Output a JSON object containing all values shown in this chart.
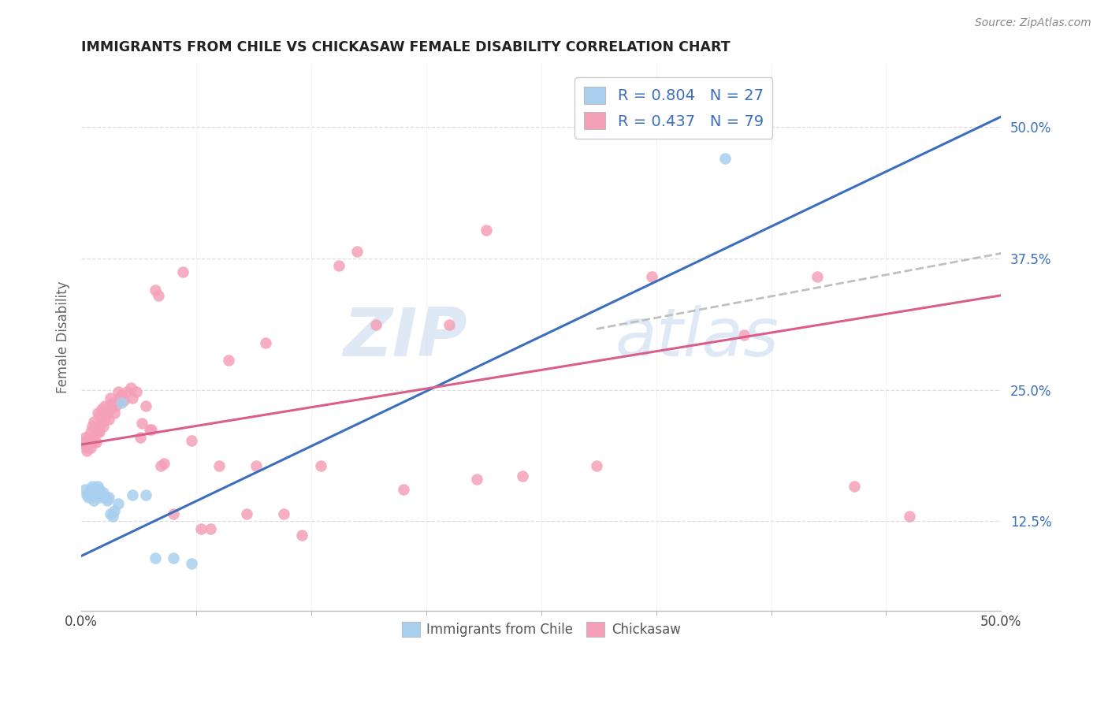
{
  "title": "IMMIGRANTS FROM CHILE VS CHICKASAW FEMALE DISABILITY CORRELATION CHART",
  "source": "Source: ZipAtlas.com",
  "ylabel": "Female Disability",
  "xlim": [
    0.0,
    0.5
  ],
  "ylim": [
    0.04,
    0.56
  ],
  "ytick_right_labels": [
    "50.0%",
    "37.5%",
    "25.0%",
    "12.5%"
  ],
  "ytick_right_values": [
    0.5,
    0.375,
    0.25,
    0.125
  ],
  "blue_R": 0.804,
  "blue_N": 27,
  "pink_R": 0.437,
  "pink_N": 79,
  "blue_color": "#A8CFEE",
  "pink_color": "#F4A0B8",
  "blue_line_color": "#3B6FBE",
  "pink_line_color": "#D95F8A",
  "dashed_line_color": "#C0C0C0",
  "watermark_zip": "ZIP",
  "watermark_atlas": "atlas",
  "legend_color": "#3B6FBE",
  "blue_scatter": [
    [
      0.002,
      0.155
    ],
    [
      0.003,
      0.15
    ],
    [
      0.004,
      0.148
    ],
    [
      0.005,
      0.155
    ],
    [
      0.006,
      0.158
    ],
    [
      0.006,
      0.148
    ],
    [
      0.007,
      0.145
    ],
    [
      0.008,
      0.152
    ],
    [
      0.009,
      0.158
    ],
    [
      0.01,
      0.155
    ],
    [
      0.01,
      0.148
    ],
    [
      0.011,
      0.15
    ],
    [
      0.012,
      0.152
    ],
    [
      0.013,
      0.148
    ],
    [
      0.014,
      0.145
    ],
    [
      0.015,
      0.148
    ],
    [
      0.016,
      0.132
    ],
    [
      0.017,
      0.13
    ],
    [
      0.018,
      0.135
    ],
    [
      0.02,
      0.142
    ],
    [
      0.022,
      0.238
    ],
    [
      0.028,
      0.15
    ],
    [
      0.035,
      0.15
    ],
    [
      0.04,
      0.09
    ],
    [
      0.05,
      0.09
    ],
    [
      0.06,
      0.085
    ],
    [
      0.35,
      0.47
    ]
  ],
  "pink_scatter": [
    [
      0.001,
      0.2
    ],
    [
      0.002,
      0.205
    ],
    [
      0.002,
      0.198
    ],
    [
      0.003,
      0.202
    ],
    [
      0.003,
      0.195
    ],
    [
      0.003,
      0.192
    ],
    [
      0.004,
      0.205
    ],
    [
      0.004,
      0.198
    ],
    [
      0.005,
      0.21
    ],
    [
      0.005,
      0.205
    ],
    [
      0.005,
      0.195
    ],
    [
      0.006,
      0.215
    ],
    [
      0.006,
      0.205
    ],
    [
      0.007,
      0.2
    ],
    [
      0.007,
      0.22
    ],
    [
      0.008,
      0.215
    ],
    [
      0.008,
      0.2
    ],
    [
      0.009,
      0.228
    ],
    [
      0.009,
      0.21
    ],
    [
      0.01,
      0.225
    ],
    [
      0.01,
      0.21
    ],
    [
      0.011,
      0.232
    ],
    [
      0.011,
      0.218
    ],
    [
      0.012,
      0.228
    ],
    [
      0.012,
      0.215
    ],
    [
      0.013,
      0.235
    ],
    [
      0.013,
      0.222
    ],
    [
      0.014,
      0.228
    ],
    [
      0.015,
      0.235
    ],
    [
      0.015,
      0.222
    ],
    [
      0.016,
      0.242
    ],
    [
      0.016,
      0.232
    ],
    [
      0.017,
      0.238
    ],
    [
      0.018,
      0.228
    ],
    [
      0.019,
      0.235
    ],
    [
      0.02,
      0.248
    ],
    [
      0.021,
      0.242
    ],
    [
      0.022,
      0.245
    ],
    [
      0.023,
      0.24
    ],
    [
      0.025,
      0.248
    ],
    [
      0.027,
      0.252
    ],
    [
      0.028,
      0.242
    ],
    [
      0.03,
      0.248
    ],
    [
      0.032,
      0.205
    ],
    [
      0.033,
      0.218
    ],
    [
      0.035,
      0.235
    ],
    [
      0.037,
      0.212
    ],
    [
      0.038,
      0.212
    ],
    [
      0.04,
      0.345
    ],
    [
      0.042,
      0.34
    ],
    [
      0.043,
      0.178
    ],
    [
      0.045,
      0.18
    ],
    [
      0.05,
      0.132
    ],
    [
      0.055,
      0.362
    ],
    [
      0.06,
      0.202
    ],
    [
      0.065,
      0.118
    ],
    [
      0.07,
      0.118
    ],
    [
      0.075,
      0.178
    ],
    [
      0.08,
      0.278
    ],
    [
      0.09,
      0.132
    ],
    [
      0.095,
      0.178
    ],
    [
      0.1,
      0.295
    ],
    [
      0.11,
      0.132
    ],
    [
      0.12,
      0.112
    ],
    [
      0.13,
      0.178
    ],
    [
      0.14,
      0.368
    ],
    [
      0.15,
      0.382
    ],
    [
      0.16,
      0.312
    ],
    [
      0.175,
      0.155
    ],
    [
      0.2,
      0.312
    ],
    [
      0.215,
      0.165
    ],
    [
      0.22,
      0.402
    ],
    [
      0.24,
      0.168
    ],
    [
      0.28,
      0.178
    ],
    [
      0.31,
      0.358
    ],
    [
      0.36,
      0.302
    ],
    [
      0.4,
      0.358
    ],
    [
      0.42,
      0.158
    ],
    [
      0.45,
      0.13
    ]
  ],
  "blue_line_x": [
    0.0,
    0.5
  ],
  "blue_line_y": [
    0.092,
    0.51
  ],
  "pink_line_x": [
    0.0,
    0.5
  ],
  "pink_line_y": [
    0.198,
    0.34
  ],
  "dashed_line_x": [
    0.28,
    0.5
  ],
  "dashed_line_y": [
    0.308,
    0.38
  ],
  "grid_color": "#DDDDDD",
  "background_color": "#FFFFFF"
}
